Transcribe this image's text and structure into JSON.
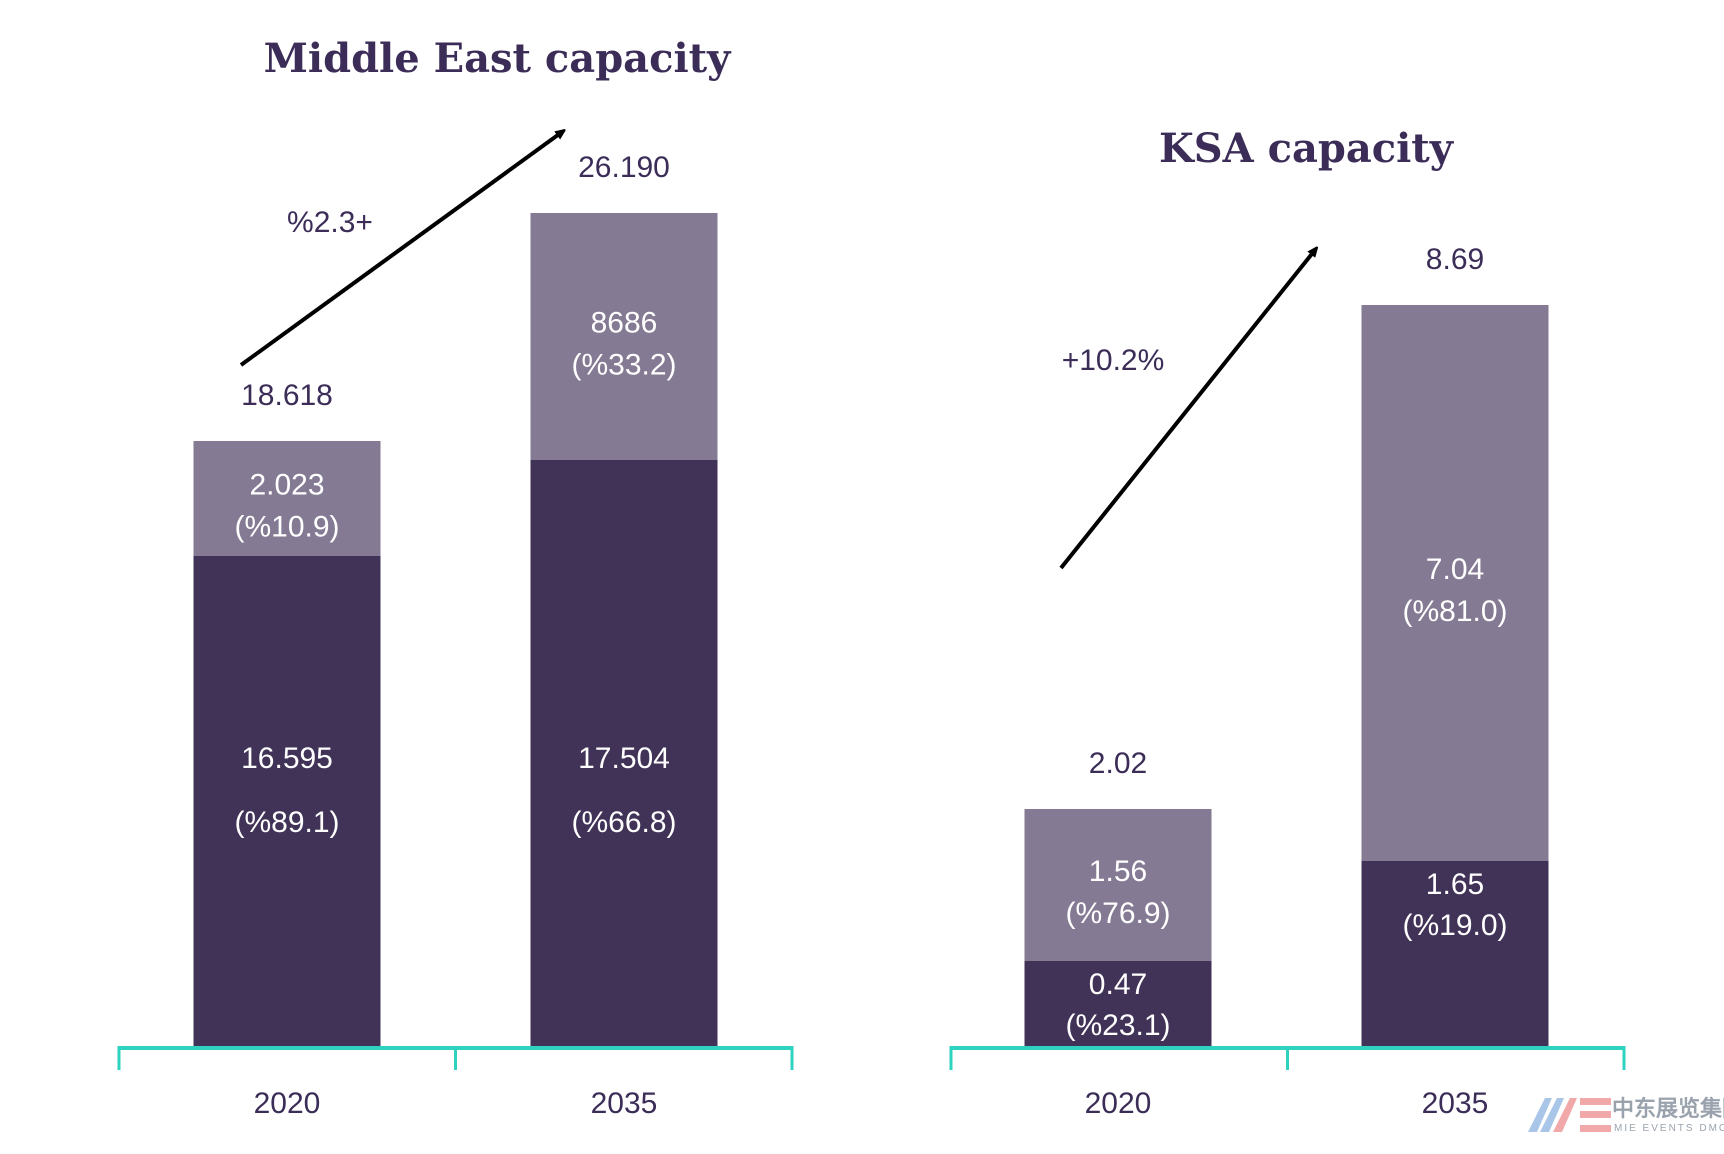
{
  "colors": {
    "primary_segment": "#413357",
    "secondary_segment": "#847a93",
    "axis": "#2ed3bf",
    "text": "#3b2d57",
    "segment_text": "#ffffff",
    "arrow": "#000000"
  },
  "watermark": {
    "logo_text": "MIE",
    "chinese": "中东展览集团",
    "english": "MIE EVENTS DMCC"
  },
  "chart_data": [
    {
      "type": "bar",
      "stacked": true,
      "title": "Middle East capacity",
      "categories": [
        "2020",
        "2035"
      ],
      "series": [
        {
          "name": "base",
          "values": [
            16.595,
            17.504
          ],
          "labels": [
            "16.595",
            "17.504"
          ],
          "share_labels": [
            "(%89.1)",
            "(%66.8)"
          ]
        },
        {
          "name": "top",
          "values": [
            2.023,
            8.686
          ],
          "labels": [
            "2.023",
            "8686"
          ],
          "share_labels": [
            "(%10.9)",
            "(%33.2)"
          ]
        }
      ],
      "totals": [
        18.618,
        26.19
      ],
      "total_labels": [
        "18.618",
        "26.190"
      ],
      "growth_annotation": "%2.3+",
      "ylim": [
        0,
        30
      ],
      "grid": false,
      "legend": "none"
    },
    {
      "type": "bar",
      "stacked": true,
      "title": "KSA capacity",
      "categories": [
        "2020",
        "2035"
      ],
      "series": [
        {
          "name": "base",
          "values": [
            0.47,
            1.65
          ],
          "labels": [
            "0.47",
            "1.65"
          ],
          "share_labels": [
            "(%23.1)",
            "(%19.0)"
          ]
        },
        {
          "name": "top",
          "values": [
            1.56,
            7.04
          ],
          "labels": [
            "1.56",
            "7.04"
          ],
          "share_labels": [
            "(%76.9)",
            "(%81.0)"
          ]
        }
      ],
      "totals": [
        2.02,
        8.69
      ],
      "total_labels": [
        "2.02",
        "8.69"
      ],
      "growth_annotation": "+10.2%",
      "ylim": [
        0,
        10
      ],
      "grid": false,
      "legend": "none"
    }
  ]
}
